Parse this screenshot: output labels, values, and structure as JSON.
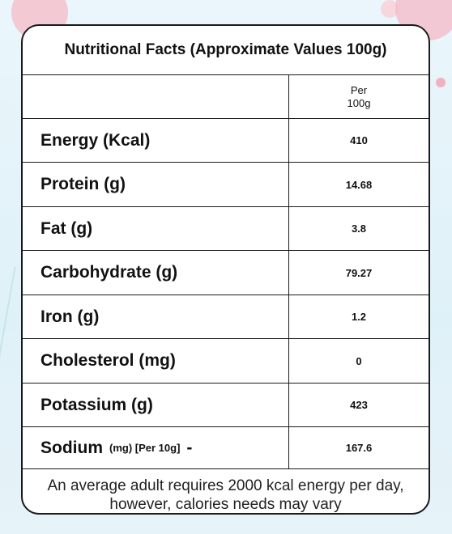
{
  "card": {
    "title": "Nutritional Facts (Approximate Values 100g)",
    "header": {
      "per_line1": "Per",
      "per_line2": "100g"
    },
    "rows": [
      {
        "label": "Energy (Kcal)",
        "value": "410"
      },
      {
        "label": "Protein (g)",
        "value": "14.68"
      },
      {
        "label": "Fat (g)",
        "value": "3.8"
      },
      {
        "label": "Carbohydrate (g)",
        "value": "79.27"
      },
      {
        "label": "Iron (g)",
        "value": "1.2"
      },
      {
        "label": "Cholesterol (mg)",
        "value": "0"
      },
      {
        "label": "Potassium (g)",
        "value": "423"
      }
    ],
    "sodium": {
      "label": "Sodium",
      "qualifier": "(mg) [Per 10g]",
      "dash": "-",
      "value": "167.6"
    },
    "note": "An average adult requires 2000 kcal energy per day, however, calories needs may vary"
  }
}
